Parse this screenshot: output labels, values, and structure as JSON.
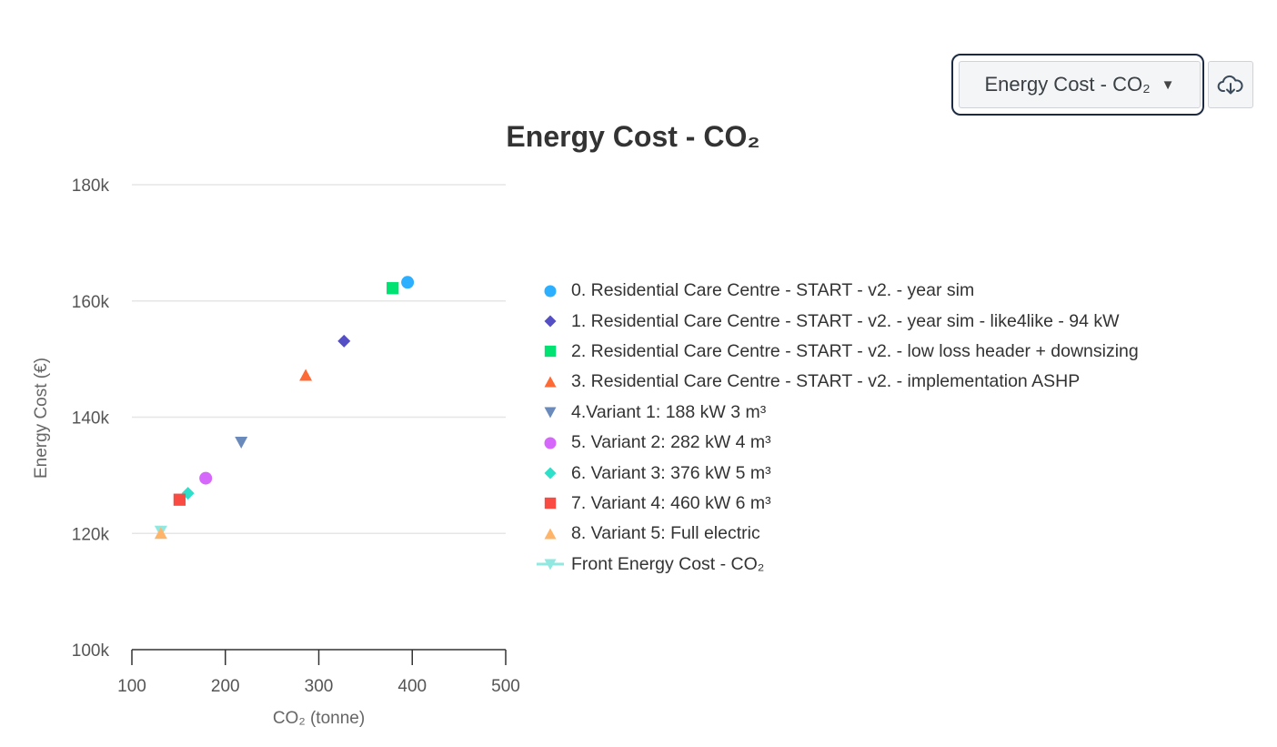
{
  "toolbar": {
    "selected_chart": "Energy Cost - CO₂",
    "download_icon": "cloud-download-icon"
  },
  "chart_data": {
    "type": "scatter",
    "title": "Energy Cost - CO₂",
    "xlabel": "CO₂ (tonne)",
    "ylabel": "Energy Cost (€)",
    "xlim": [
      100,
      500
    ],
    "ylim": [
      100000,
      180000
    ],
    "x_ticks": [
      100,
      200,
      300,
      400,
      500
    ],
    "x_tick_labels": [
      "100",
      "200",
      "300",
      "400",
      "500"
    ],
    "y_ticks": [
      100000,
      120000,
      140000,
      160000,
      180000
    ],
    "y_tick_labels": [
      "100k",
      "120k",
      "140k",
      "160k",
      "180k"
    ],
    "grid": "horizontal",
    "legend_position": "right",
    "series": [
      {
        "name": "0. Residential Care Centre - START - v2. - year sim",
        "marker": "circle",
        "color": "#2caffe",
        "x": 395,
        "y": 163200
      },
      {
        "name": "1. Residential Care Centre - START - v2. - year sim - like4like - 94 kW",
        "marker": "diamond",
        "color": "#544fc5",
        "x": 327,
        "y": 153100
      },
      {
        "name": "2. Residential Care Centre - START - v2. - low loss header + downsizing",
        "marker": "square",
        "color": "#00e272",
        "x": 379,
        "y": 162200
      },
      {
        "name": "3. Residential Care Centre - START - v2. - implementation ASHP",
        "marker": "triangle",
        "color": "#fe6a35",
        "x": 286,
        "y": 147200
      },
      {
        "name": "4.Variant 1: 188 kW 3 m³",
        "marker": "triangle-down",
        "color": "#6b8abc",
        "x": 217,
        "y": 135700
      },
      {
        "name": "5. Variant 2: 282 kW 4 m³",
        "marker": "circle",
        "color": "#d568fb",
        "x": 179,
        "y": 129500
      },
      {
        "name": "6. Variant 3: 376 kW 5 m³",
        "marker": "diamond",
        "color": "#2ee0ca",
        "x": 160,
        "y": 126900
      },
      {
        "name": "7. Variant 4: 460 kW 6 m³",
        "marker": "square",
        "color": "#fa4b42",
        "x": 151,
        "y": 125800
      },
      {
        "name": "8. Variant 5: Full electric",
        "marker": "triangle",
        "color": "#feb56a",
        "x": 131,
        "y": 120000
      },
      {
        "name": "Front Energy Cost - CO₂",
        "marker": "triangle-down",
        "color": "#91e8e1",
        "line": true,
        "x": 131,
        "y": 120400
      }
    ]
  }
}
